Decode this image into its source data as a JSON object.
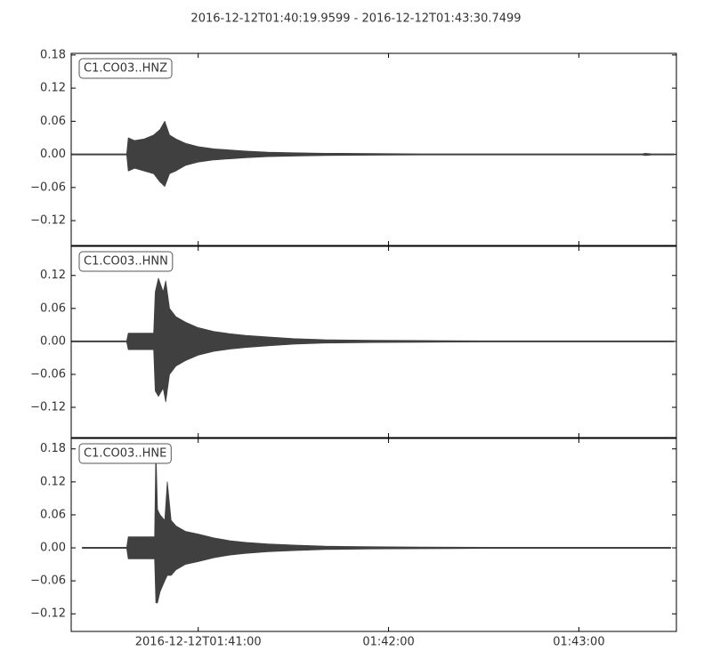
{
  "title": "2016-12-12T01:40:19.9599  -  2016-12-12T01:43:30.7499",
  "chart_data": [
    {
      "type": "waveform",
      "label": "C1.CO03..HNZ",
      "x": [
        0,
        17.5,
        18,
        20,
        23,
        26,
        28,
        29.5,
        31,
        33,
        36,
        40,
        45,
        50,
        55,
        62,
        70,
        80,
        95,
        110,
        130,
        150,
        170,
        180,
        181,
        183,
        190
      ],
      "series": [
        {
          "color": "#404040",
          "values": [
            0.001,
            0.001,
            0.03,
            0.025,
            0.028,
            0.035,
            0.045,
            0.06,
            0.035,
            0.028,
            0.02,
            0.014,
            0.01,
            0.008,
            0.006,
            0.004,
            0.003,
            0.002,
            0.0015,
            0.001,
            0.001,
            0.001,
            0.001,
            0.001,
            0.002,
            0.001,
            0.001
          ]
        },
        {
          "color": "#404040",
          "values": [
            -0.001,
            -0.001,
            -0.03,
            -0.025,
            -0.03,
            -0.035,
            -0.05,
            -0.058,
            -0.035,
            -0.03,
            -0.02,
            -0.014,
            -0.01,
            -0.008,
            -0.006,
            -0.004,
            -0.003,
            -0.002,
            -0.0015,
            -0.001,
            -0.001,
            -0.001,
            -0.001,
            -0.001,
            -0.002,
            -0.001,
            -0.001
          ]
        }
      ],
      "xlim": [
        0,
        190.79
      ],
      "ylim": [
        -0.165,
        0.183
      ],
      "yticks": [
        0.18,
        0.12,
        0.06,
        {
          "value": 0,
          "label": "0.00"
        },
        {
          "value": -0.06,
          "label": "−0.06"
        },
        {
          "value": -0.12,
          "label": "−0.12"
        }
      ]
    },
    {
      "type": "waveform",
      "label": "C1.CO03..HNN",
      "x": [
        0,
        17.5,
        18,
        22,
        26,
        26.5,
        27.5,
        29,
        29.8,
        31,
        33,
        36,
        40,
        45,
        50,
        55,
        62,
        70,
        80,
        95,
        110,
        130,
        150,
        170,
        190
      ],
      "series": [
        {
          "color": "#404040",
          "values": [
            0.001,
            0.001,
            0.015,
            0.015,
            0.015,
            0.09,
            0.115,
            0.09,
            0.11,
            0.06,
            0.045,
            0.035,
            0.025,
            0.018,
            0.014,
            0.011,
            0.008,
            0.005,
            0.003,
            0.002,
            0.0015,
            0.001,
            0.001,
            0.001,
            0.001
          ]
        },
        {
          "color": "#404040",
          "values": [
            -0.001,
            -0.001,
            -0.015,
            -0.015,
            -0.015,
            -0.09,
            -0.1,
            -0.085,
            -0.11,
            -0.06,
            -0.045,
            -0.035,
            -0.025,
            -0.018,
            -0.014,
            -0.011,
            -0.008,
            -0.005,
            -0.003,
            -0.002,
            -0.0015,
            -0.001,
            -0.001,
            -0.001,
            -0.001
          ]
        }
      ],
      "xlim": [
        0,
        190.79
      ],
      "ylim": [
        -0.175,
        0.173
      ],
      "yticks": [
        0.12,
        0.06,
        {
          "value": 0,
          "label": "0.00"
        },
        {
          "value": -0.06,
          "label": "−0.06"
        },
        {
          "value": -0.12,
          "label": "−0.12"
        }
      ]
    },
    {
      "type": "waveform",
      "label": "C1.CO03..HNE",
      "x": [
        3.5,
        17.5,
        18,
        22,
        26.3,
        26.7,
        27.2,
        28,
        29.5,
        30.3,
        31.5,
        33,
        36,
        40,
        45,
        50,
        55,
        62,
        70,
        80,
        95,
        110,
        130,
        150,
        170,
        189
      ],
      "series": [
        {
          "color": "#404040",
          "values": [
            0.001,
            0.001,
            0.02,
            0.02,
            0.02,
            0.18,
            0.07,
            0.06,
            0.05,
            0.12,
            0.05,
            0.04,
            0.03,
            0.025,
            0.018,
            0.013,
            0.01,
            0.007,
            0.005,
            0.003,
            0.002,
            0.0015,
            0.001,
            0.001,
            0.001,
            0.001
          ]
        },
        {
          "color": "#404040",
          "values": [
            -0.001,
            -0.001,
            -0.02,
            -0.02,
            -0.02,
            -0.1,
            -0.1,
            -0.08,
            -0.06,
            -0.05,
            -0.05,
            -0.04,
            -0.03,
            -0.025,
            -0.018,
            -0.013,
            -0.01,
            -0.007,
            -0.005,
            -0.003,
            -0.002,
            -0.0015,
            -0.001,
            -0.001,
            -0.001,
            -0.001
          ]
        }
      ],
      "xlim": [
        0,
        190.79
      ],
      "ylim": [
        -0.152,
        0.199
      ],
      "yticks": [
        0.18,
        0.12,
        0.06,
        {
          "value": 0,
          "label": "0.00"
        },
        {
          "value": -0.06,
          "label": "−0.06"
        },
        {
          "value": -0.12,
          "label": "−0.12"
        }
      ],
      "xticks": [
        {
          "value": 40.04,
          "label": "2016-12-12T01:41:00"
        },
        {
          "value": 100.04,
          "label": "01:42:00"
        },
        {
          "value": 160.04,
          "label": "01:43:00"
        }
      ]
    }
  ]
}
